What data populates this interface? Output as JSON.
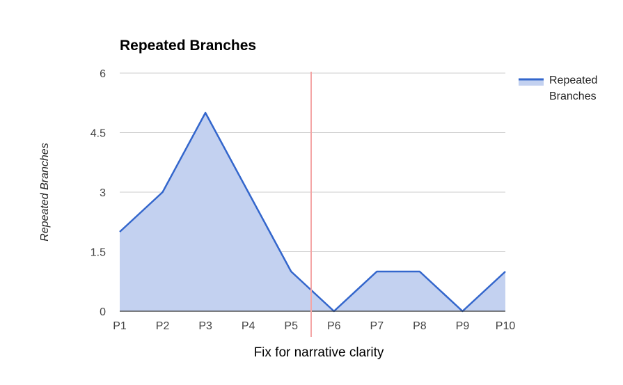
{
  "chart_data": {
    "type": "area",
    "title": "Repeated Branches",
    "ylabel": "Repeated Branches",
    "xlabel": "",
    "categories": [
      "P1",
      "P2",
      "P3",
      "P4",
      "P5",
      "P6",
      "P7",
      "P8",
      "P9",
      "P10"
    ],
    "series": [
      {
        "name": "Repeated Branches",
        "values": [
          2,
          3,
          5,
          3,
          1,
          0,
          1,
          1,
          0,
          1
        ],
        "line_color": "#3366cc",
        "fill_color": "#c3d1f0"
      }
    ],
    "ylim": [
      0,
      6
    ],
    "yticks": [
      "0",
      "1.5",
      "3",
      "4.5",
      "6"
    ],
    "grid": true,
    "legend_position": "right",
    "annotation": {
      "label": "Fix for narrative clarity",
      "x_position": 4.5,
      "color": "#f4a6a6"
    }
  }
}
